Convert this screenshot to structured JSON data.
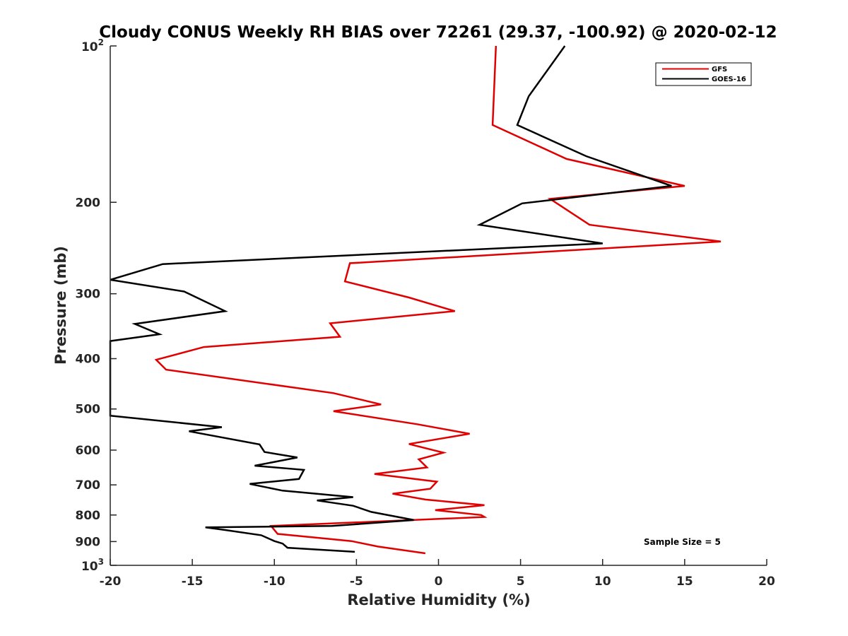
{
  "chart_data": {
    "type": "line",
    "title": "Cloudy CONUS Weekly RH BIAS over 72261 (29.37, -100.92) @ 2020-02-12",
    "xlabel": "Relative Humidity (%)",
    "ylabel": "Pressure (mb)",
    "xlim": [
      -20,
      20
    ],
    "ylim": [
      100,
      1000
    ],
    "yscale": "log",
    "y_reversed": true,
    "grid": false,
    "x_ticks": [
      -20,
      -15,
      -10,
      -5,
      0,
      5,
      10,
      15,
      20
    ],
    "x_tick_labels": [
      "-20",
      "-15",
      "-10",
      "-5",
      "0",
      "5",
      "10",
      "15",
      "20"
    ],
    "y_ticks": [
      {
        "value": 100,
        "base": "10",
        "exp": "2"
      },
      {
        "value": 200,
        "label": "200"
      },
      {
        "value": 300,
        "label": "300"
      },
      {
        "value": 400,
        "label": "400"
      },
      {
        "value": 500,
        "label": "500"
      },
      {
        "value": 600,
        "label": "600"
      },
      {
        "value": 700,
        "label": "700"
      },
      {
        "value": 800,
        "label": "800"
      },
      {
        "value": 900,
        "label": "900"
      },
      {
        "value": 1000,
        "base": "10",
        "exp": "3"
      }
    ],
    "legend": {
      "position": "top-right",
      "entries": [
        "GFS",
        "GOES-16"
      ]
    },
    "annotation": "Sample Size = 5",
    "series": [
      {
        "name": "GFS",
        "color": "#e00000",
        "x": [
          3.5,
          3.3,
          7.8,
          15.0,
          6.8,
          9.2,
          17.2,
          -5.4,
          -5.7,
          -1.8,
          1.0,
          -6.6,
          -6.0,
          -14.3,
          -17.2,
          -16.6,
          -6.4,
          -3.5,
          -6.4,
          -1.3,
          1.9,
          -1.8,
          0.3,
          -1.2,
          -0.7,
          -3.9,
          -0.1,
          -0.5,
          -2.8,
          -0.8,
          2.8,
          -0.2,
          2.6,
          2.8,
          -10.2,
          -9.8,
          -5.3,
          -3.7,
          -0.8
        ],
        "y": [
          100,
          142,
          165,
          186,
          197,
          221,
          238,
          262,
          284,
          305,
          324,
          342,
          363,
          380,
          402,
          420,
          466,
          490,
          505,
          535,
          558,
          584,
          607,
          625,
          648,
          667,
          690,
          712,
          728,
          747,
          766,
          783,
          800,
          807,
          840,
          870,
          898,
          920,
          948
        ]
      },
      {
        "name": "GOES-16",
        "color": "#000000",
        "x": [
          7.7,
          5.5,
          4.8,
          9.0,
          14.2,
          5.1,
          2.5,
          10.0,
          -16.8,
          -20.0,
          -15.5,
          -13.0,
          -18.5,
          -17.0,
          -20.0,
          -20.0,
          -13.2,
          -15.2,
          -10.9,
          -10.6,
          -8.6,
          -11.2,
          -8.2,
          -8.5,
          -11.5,
          -9.5,
          -5.2,
          -7.4,
          -5.2,
          -4.1,
          -1.5,
          -6.5,
          -14.2,
          -13.0,
          -10.8,
          -10.0,
          -9.5,
          -9.2,
          -5.1
        ],
        "y": [
          100,
          125,
          142,
          163,
          186,
          201,
          221,
          240,
          263,
          282,
          297,
          324,
          343,
          359,
          370,
          515,
          542,
          552,
          585,
          605,
          620,
          643,
          655,
          682,
          697,
          718,
          739,
          750,
          768,
          789,
          818,
          840,
          845,
          855,
          875,
          898,
          908,
          925,
          942
        ]
      }
    ]
  }
}
